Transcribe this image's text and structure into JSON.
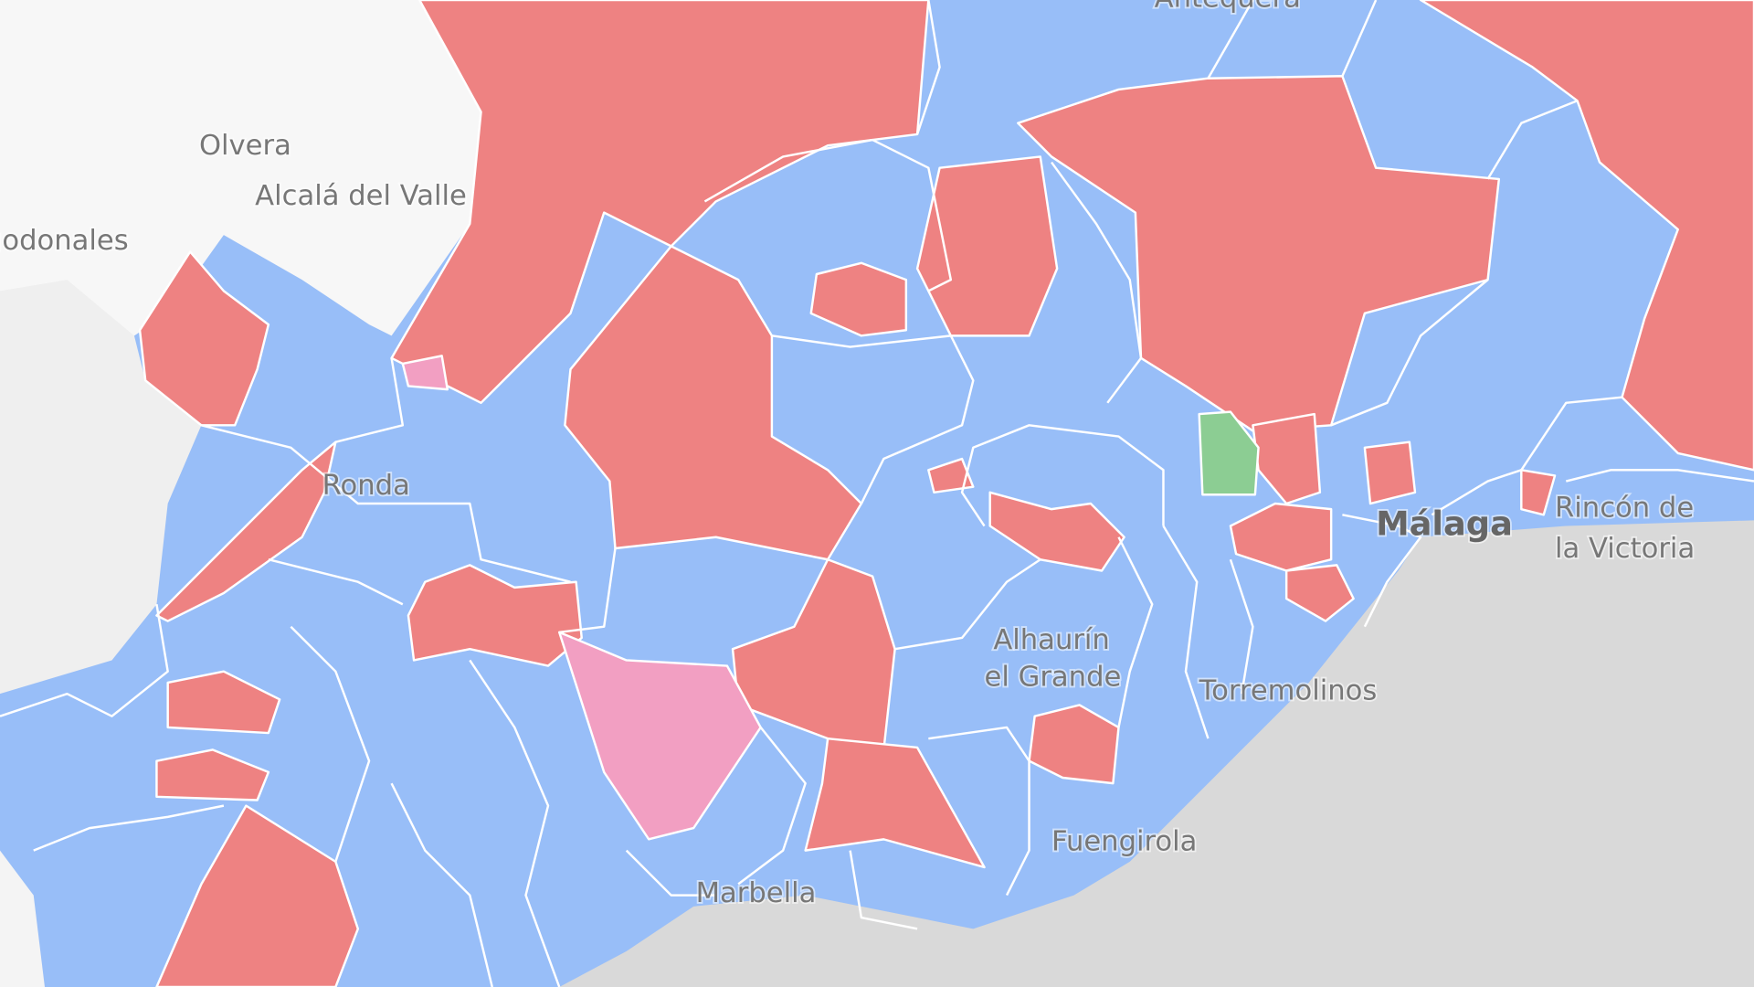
{
  "map": {
    "colors": {
      "land_party_a": "#98bef8",
      "land_party_b": "#ee8282",
      "land_party_c": "#f29fc2",
      "land_party_d": "#8ccd93",
      "sea": "#d9d9d9",
      "outside_region": "#f7f7f7"
    },
    "place_labels": [
      {
        "name": "Antequera"
      },
      {
        "name": "Olvera"
      },
      {
        "name": "Alcalá del Valle"
      },
      {
        "name": "Algodonales"
      },
      {
        "name": "Ronda"
      },
      {
        "name": "Málaga"
      },
      {
        "name": "Rincón de"
      },
      {
        "name": "la Victoria"
      },
      {
        "name": "Alhaurín"
      },
      {
        "name": "el Grande"
      },
      {
        "name": "Torremolinos"
      },
      {
        "name": "Fuengirola"
      },
      {
        "name": "Marbella"
      }
    ]
  }
}
